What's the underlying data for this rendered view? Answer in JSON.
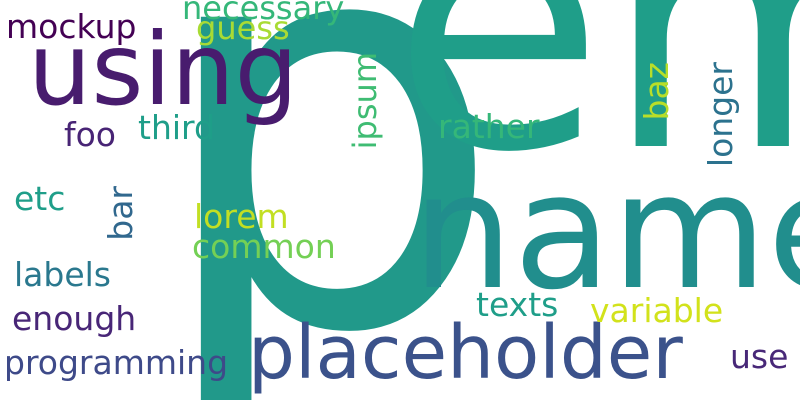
{
  "words": {
    "p": "p",
    "em": "em",
    "name": "name",
    "using": "using",
    "placeholder": "placeholder",
    "necessary": "necessary",
    "guess": "guess",
    "mockup": "mockup",
    "foo": "foo",
    "third": "third",
    "ipsum": "ipsum",
    "rather": "rather",
    "baz": "baz",
    "longer": "longer",
    "etc": "etc",
    "bar": "bar",
    "lorem": "lorem",
    "common": "common",
    "labels": "labels",
    "enough": "enough",
    "texts": "texts",
    "variable": "variable",
    "programming": "programming",
    "use": "use"
  },
  "colors": {
    "p": "#21998a",
    "em": "#1f9e89",
    "name": "#218e8d",
    "using": "#481c6e",
    "placeholder": "#3b528b",
    "necessary": "#35b779",
    "guess": "#a8db34",
    "mockup": "#440154",
    "foo": "#482475",
    "third": "#1f9e89",
    "ipsum": "#3fbc73",
    "rather": "#35b779",
    "baz": "#b8de29",
    "longer": "#2c728e",
    "etc": "#1f9e89",
    "bar": "#31688e",
    "lorem": "#c2df23",
    "common": "#74d055",
    "labels": "#2a788e",
    "enough": "#482677",
    "texts": "#1f9e89",
    "variable": "#d2e21b",
    "programming": "#3e4a89",
    "use": "#482878"
  }
}
